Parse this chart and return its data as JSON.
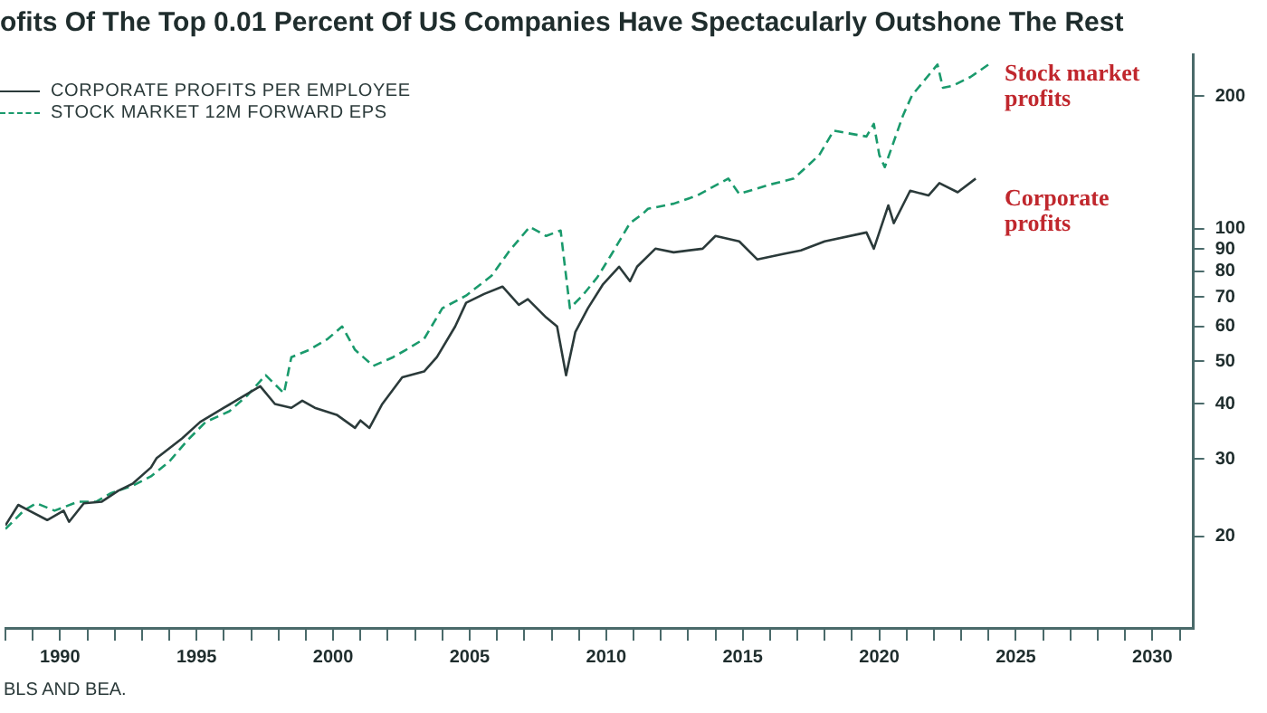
{
  "chart_data": {
    "type": "line",
    "title": "ofits Of The Top 0.01 Percent Of US Companies Have Spectacularly Outshone The Rest",
    "log": "y",
    "legend": "top left",
    "marker": "none",
    "xlim": [
      1988,
      2031.5
    ],
    "ylim": [
      12.4,
      249
    ],
    "xticks": [
      {
        "value": 1988,
        "label": null
      },
      {
        "value": 1989,
        "label": null
      },
      1990,
      {
        "value": 1991,
        "label": null
      },
      {
        "value": 1992,
        "label": null
      },
      {
        "value": 1993,
        "label": null
      },
      {
        "value": 1994,
        "label": null
      },
      1995,
      {
        "value": 1996,
        "label": null
      },
      {
        "value": 1997,
        "label": null
      },
      {
        "value": 1998,
        "label": null
      },
      {
        "value": 1999,
        "label": null
      },
      2000,
      {
        "value": 2001,
        "label": null
      },
      {
        "value": 2002,
        "label": null
      },
      {
        "value": 2003,
        "label": null
      },
      {
        "value": 2004,
        "label": null
      },
      2005,
      {
        "value": 2006,
        "label": null
      },
      {
        "value": 2007,
        "label": null
      },
      {
        "value": 2008,
        "label": null
      },
      {
        "value": 2009,
        "label": null
      },
      2010,
      {
        "value": 2011,
        "label": null
      },
      {
        "value": 2012,
        "label": null
      },
      {
        "value": 2013,
        "label": null
      },
      {
        "value": 2014,
        "label": null
      },
      2015,
      {
        "value": 2016,
        "label": null
      },
      {
        "value": 2017,
        "label": null
      },
      {
        "value": 2018,
        "label": null
      },
      {
        "value": 2019,
        "label": null
      },
      2020,
      {
        "value": 2021,
        "label": null
      },
      {
        "value": 2022,
        "label": null
      },
      {
        "value": 2023,
        "label": null
      },
      {
        "value": 2024,
        "label": null
      },
      2025,
      {
        "value": 2026,
        "label": null
      },
      {
        "value": 2027,
        "label": null
      },
      {
        "value": 2028,
        "label": null
      },
      {
        "value": 2029,
        "label": null
      },
      2030,
      {
        "value": 2031,
        "label": null
      }
    ],
    "yticks": [
      20,
      30,
      40,
      50,
      60,
      70,
      80,
      90,
      100,
      200
    ],
    "series": [
      {
        "name": "CORPORATE PROFITS PER EMPLOYEE",
        "color": "#2b3a3a",
        "line_style": "solid",
        "x": [
          1988.0,
          1988.47,
          1988.87,
          1989.53,
          1990.13,
          1990.33,
          1990.87,
          1991.53,
          1992.13,
          1992.67,
          1993.33,
          1993.53,
          1994.47,
          1995.13,
          1996.0,
          1996.67,
          1997.33,
          1997.87,
          1998.47,
          1998.87,
          1999.33,
          2000.13,
          2000.8,
          2001.0,
          2001.33,
          2001.8,
          2002.53,
          2003.33,
          2003.8,
          2004.47,
          2004.87,
          2005.53,
          2006.2,
          2006.8,
          2007.13,
          2007.8,
          2008.2,
          2008.53,
          2008.87,
          2009.33,
          2009.87,
          2010.47,
          2010.87,
          2011.13,
          2011.8,
          2012.47,
          2013.53,
          2014.0,
          2014.87,
          2015.53,
          2016.47,
          2017.13,
          2018.0,
          2019.53,
          2019.8,
          2020.33,
          2020.53,
          2021.13,
          2021.8,
          2022.2,
          2022.87,
          2023.53
        ],
        "values": [
          21.2,
          23.6,
          22.9,
          21.8,
          22.9,
          21.6,
          23.8,
          24.0,
          25.4,
          26.4,
          28.7,
          30.1,
          33.4,
          36.4,
          39.2,
          41.5,
          43.9,
          40.0,
          39.2,
          40.7,
          39.2,
          37.8,
          35.3,
          36.7,
          35.3,
          40.0,
          46.0,
          47.4,
          51.1,
          60.0,
          67.9,
          71.1,
          73.9,
          67.2,
          69.2,
          62.9,
          60.0,
          46.5,
          58.3,
          66.0,
          74.6,
          82.0,
          76.0,
          82.0,
          90.1,
          88.4,
          90.1,
          96.3,
          93.6,
          85.2,
          87.6,
          89.3,
          93.6,
          98.1,
          90.1,
          113,
          103,
          122,
          119,
          127,
          121,
          130
        ]
      },
      {
        "name": "STOCK MARKET 12M FORWARD EPS",
        "color": "#1a9a6c",
        "line_style": "dashed",
        "x": [
          1988.0,
          1988.67,
          1989.13,
          1989.8,
          1990.67,
          1991.33,
          1991.87,
          1992.67,
          1993.33,
          1994.0,
          1994.67,
          1995.33,
          1996.2,
          1996.87,
          1997.53,
          1998.2,
          1998.47,
          1999.13,
          1999.8,
          2000.33,
          2000.8,
          2001.47,
          2002.2,
          2002.67,
          2003.33,
          2004.0,
          2004.87,
          2005.8,
          2006.47,
          2007.2,
          2007.8,
          2008.33,
          2008.67,
          2009.13,
          2009.67,
          2010.2,
          2010.87,
          2011.33,
          2011.53,
          2012.47,
          2013.33,
          2014.47,
          2014.87,
          2016.0,
          2016.87,
          2017.8,
          2018.33,
          2019.53,
          2019.8,
          2020.0,
          2020.2,
          2020.87,
          2021.2,
          2022.13,
          2022.33,
          2022.67,
          2023.33,
          2024.0
        ],
        "values": [
          20.8,
          22.9,
          23.8,
          22.9,
          24.0,
          24.0,
          25.1,
          26.1,
          27.4,
          29.6,
          33.1,
          36.4,
          38.5,
          41.9,
          46.5,
          42.3,
          51.1,
          53.1,
          56.2,
          60.0,
          53.1,
          48.8,
          51.1,
          53.1,
          56.2,
          66.0,
          70.5,
          78.2,
          89.3,
          101,
          96.3,
          99.1,
          66.0,
          70.5,
          77.5,
          87.6,
          103,
          108,
          111,
          114,
          119,
          130,
          120,
          126,
          130,
          147,
          167,
          162,
          173,
          147,
          138,
          181,
          201,
          236,
          209,
          211,
          221,
          236
        ]
      }
    ],
    "annotations": [
      "Stock market profits",
      "Corporate profits",
      "BLS AND BEA."
    ]
  }
}
